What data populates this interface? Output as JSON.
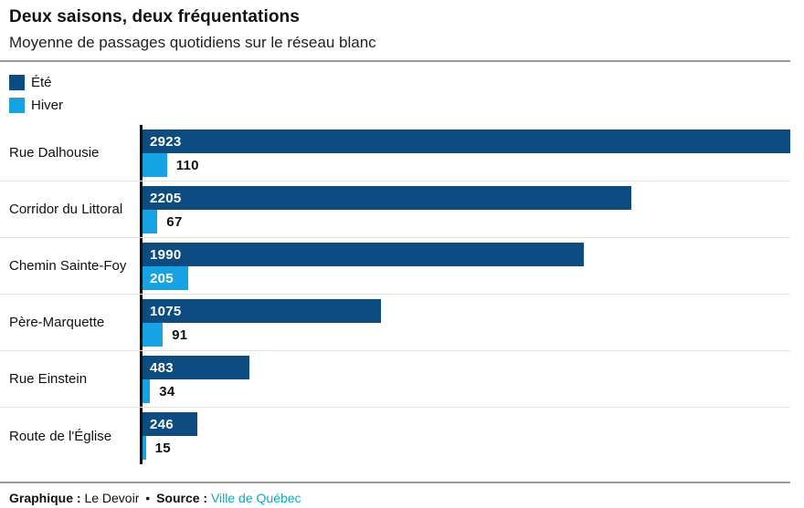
{
  "header": {
    "title": "Deux saisons, deux fréquentations",
    "subtitle": "Moyenne de passages quotidiens sur le réseau blanc"
  },
  "legend": [
    {
      "label": "Été",
      "color": "#0d4c80"
    },
    {
      "label": "Hiver",
      "color": "#16a3e4"
    }
  ],
  "chart_data": {
    "type": "bar",
    "orientation": "horizontal",
    "title": "Deux saisons, deux fréquentations",
    "subtitle": "Moyenne de passages quotidiens sur le réseau blanc",
    "categories": [
      "Rue Dalhousie",
      "Corridor du Littoral",
      "Chemin Sainte-Foy",
      "Père-Marquette",
      "Rue Einstein",
      "Route de l'Église"
    ],
    "series": [
      {
        "name": "Été",
        "color": "#0d4c80",
        "values": [
          2923,
          2205,
          1990,
          1075,
          483,
          246
        ]
      },
      {
        "name": "Hiver",
        "color": "#16a3e4",
        "values": [
          110,
          67,
          205,
          91,
          34,
          15
        ]
      }
    ],
    "xlim": [
      0,
      2923
    ],
    "value_labels": true,
    "grid": false,
    "legend_position": "top-left"
  },
  "footer": {
    "graphique_label": "Graphique :",
    "graphique_value": "Le Devoir",
    "separator": "•",
    "source_label": "Source :",
    "source_value": "Ville de Québec",
    "source_link_color": "#0ea9bd"
  }
}
